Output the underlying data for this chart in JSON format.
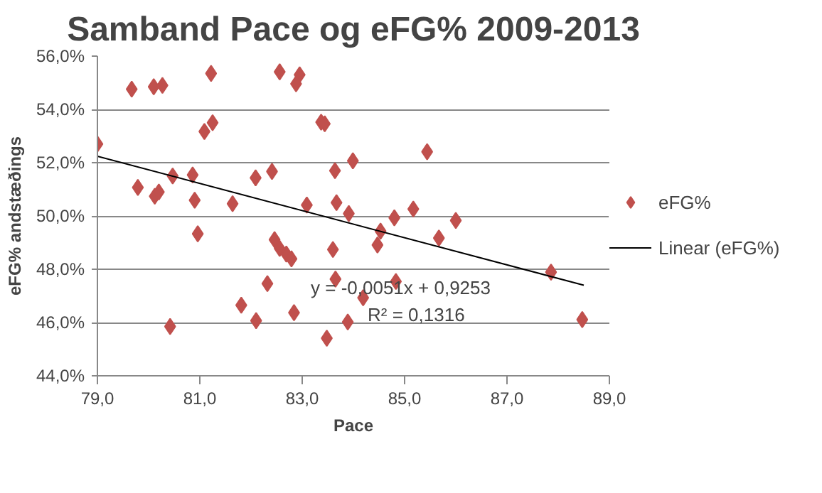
{
  "chart_data": {
    "type": "scatter",
    "title": "Samband Pace og eFG% 2009-2013",
    "xlabel": "Pace",
    "ylabel": "eFG% andstæðings",
    "xlim": [
      79,
      89
    ],
    "ylim": [
      44,
      56
    ],
    "xticks": [
      {
        "value": 79,
        "label": "79,0"
      },
      {
        "value": 81,
        "label": "81,0"
      },
      {
        "value": 83,
        "label": "83,0"
      },
      {
        "value": 85,
        "label": "85,0"
      },
      {
        "value": 87,
        "label": "87,0"
      },
      {
        "value": 89,
        "label": "89,0"
      }
    ],
    "yticks": [
      {
        "value": 44,
        "label": "44,0%"
      },
      {
        "value": 46,
        "label": "46,0%"
      },
      {
        "value": 48,
        "label": "48,0%"
      },
      {
        "value": 50,
        "label": "50,0%"
      },
      {
        "value": 52,
        "label": "52,0%"
      },
      {
        "value": 54,
        "label": "54,0%"
      },
      {
        "value": 56,
        "label": "56,0%"
      }
    ],
    "grid": "y",
    "legend": "right",
    "series": [
      {
        "name": "eFG%",
        "marker": "diamond",
        "color": "#c0504d",
        "x": [
          79.0,
          79.67,
          79.79,
          80.1,
          80.27,
          80.12,
          80.2,
          80.47,
          80.86,
          80.9,
          80.96,
          81.22,
          81.25,
          81.09,
          81.64,
          82.09,
          82.41,
          82.56,
          82.95,
          82.88,
          82.46,
          82.56,
          82.69,
          82.79,
          82.32,
          81.81,
          82.1,
          82.84,
          83.09,
          83.37,
          83.44,
          83.6,
          83.64,
          83.67,
          83.65,
          83.48,
          83.89,
          83.99,
          83.91,
          84.19,
          84.47,
          84.53,
          84.8,
          84.83,
          85.17,
          85.44,
          85.67,
          86.0,
          87.86,
          88.47,
          80.42
        ],
        "values": [
          52.7,
          54.76,
          51.07,
          54.85,
          54.9,
          50.74,
          50.9,
          51.5,
          51.54,
          50.59,
          49.33,
          55.35,
          53.5,
          53.17,
          50.46,
          51.43,
          51.67,
          55.41,
          55.3,
          54.96,
          49.11,
          48.78,
          48.57,
          48.39,
          47.46,
          46.65,
          46.07,
          46.37,
          50.41,
          53.52,
          53.46,
          48.74,
          51.7,
          50.5,
          47.63,
          45.41,
          46.02,
          52.07,
          50.09,
          46.93,
          48.91,
          49.43,
          49.93,
          47.54,
          50.26,
          52.41,
          49.17,
          49.83,
          47.89,
          46.11,
          45.85
        ]
      },
      {
        "name": "Linear (eFG%)",
        "type": "line",
        "color": "#000000",
        "x": [
          79.0,
          88.5
        ],
        "values": [
          52.24,
          47.4
        ]
      }
    ],
    "annotations": [
      "y = -0,0051x + 0,9253",
      "R² = 0,1316"
    ]
  }
}
